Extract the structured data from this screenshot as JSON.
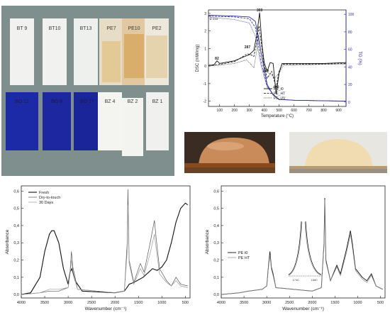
{
  "photo_panel": {
    "labels_top": [
      "BT 9",
      "BT10",
      "BT13",
      "PE7",
      "PE10",
      "PE2"
    ],
    "labels_bottom": [
      "BO 12",
      "BO 8",
      "BO 17",
      "BZ 4",
      "BZ 2",
      "BZ 1"
    ],
    "colors": {
      "background": "#7f8f8e",
      "white_coat": "#f1f2f0",
      "blue_coat": "#1d2aa7",
      "amber": "#d9ad6a"
    }
  },
  "dsc_tg": {
    "chart_data": {
      "type": "line",
      "xlabel": "Temperature (°C)",
      "ylabel_left": "DSC (mW/mg)",
      "ylabel_right": "TG (%)",
      "xlim": [
        25,
        950
      ],
      "xticks": [
        100,
        200,
        300,
        400,
        500,
        600,
        700,
        800,
        900
      ],
      "yticks_left": [
        3,
        2,
        1,
        0,
        -1,
        -2
      ],
      "yticks_right": [
        0,
        20,
        40,
        60,
        80,
        100
      ],
      "ylim_left": [
        -2.3,
        3.2
      ],
      "ylim_right": [
        -5,
        105
      ],
      "legend": [
        "PE_t0",
        "PE_HT",
        "PE_UV"
      ],
      "annotations": [
        "exo",
        "82",
        "287",
        "369",
        "410",
        "480"
      ],
      "annotation_points": [
        {
          "text": "82",
          "x": 82,
          "y": 0.25
        },
        {
          "text": "287",
          "x": 287,
          "y": 0.9
        },
        {
          "text": "369",
          "x": 369,
          "y": 3.0
        },
        {
          "text": "410",
          "x": 410,
          "y": -0.45
        },
        {
          "text": "480",
          "x": 480,
          "y": -1.4
        }
      ],
      "series": [
        {
          "name": "PE_t0",
          "axis": "left",
          "x": [
            25,
            60,
            82,
            100,
            200,
            270,
            300,
            330,
            350,
            369,
            385,
            400,
            420,
            440,
            460,
            480,
            500,
            520,
            600,
            700,
            800,
            950
          ],
          "y": [
            0.05,
            0.05,
            0.3,
            0.15,
            0.3,
            0.55,
            0.65,
            0.9,
            1.8,
            3.05,
            1.2,
            0.2,
            -0.3,
            0.2,
            0.15,
            -1.6,
            -0.4,
            0.15,
            0.15,
            0.15,
            0.15,
            0.2
          ]
        },
        {
          "name": "PE_HT",
          "axis": "left",
          "x": [
            25,
            100,
            200,
            287,
            310,
            330,
            350,
            365,
            385,
            400,
            420,
            450,
            480,
            500,
            520,
            600,
            800,
            950
          ],
          "y": [
            0.05,
            0.1,
            0.25,
            0.7,
            0.65,
            0.55,
            1.4,
            2.3,
            1.0,
            0.0,
            -0.7,
            -0.3,
            -1.2,
            -0.3,
            0.1,
            0.1,
            0.12,
            0.15
          ]
        },
        {
          "name": "PE_UV",
          "axis": "left",
          "x": [
            25,
            100,
            200,
            280,
            300,
            330,
            350,
            362,
            380,
            400,
            420,
            450,
            470,
            500,
            530,
            600,
            800,
            950
          ],
          "y": [
            0.0,
            0.05,
            0.15,
            0.35,
            0.2,
            -0.1,
            0.9,
            1.8,
            0.7,
            0.0,
            -0.35,
            -0.5,
            -0.7,
            -0.4,
            0.05,
            0.05,
            0.1,
            0.1
          ]
        },
        {
          "name": "TG_PE_t0",
          "axis": "right",
          "x": [
            25,
            200,
            300,
            340,
            380,
            420,
            460,
            500,
            600,
            950
          ],
          "y": [
            99,
            98,
            97,
            92,
            55,
            20,
            8,
            3,
            2,
            1
          ]
        },
        {
          "name": "TG_PE_HT",
          "axis": "right",
          "x": [
            25,
            200,
            300,
            340,
            380,
            420,
            460,
            500,
            600,
            950
          ],
          "y": [
            98,
            97,
            95,
            85,
            45,
            18,
            9,
            3,
            2,
            1
          ]
        },
        {
          "name": "TG_PE_UV",
          "axis": "right",
          "x": [
            25,
            200,
            300,
            340,
            380,
            420,
            460,
            500,
            600,
            950
          ],
          "y": [
            97,
            94,
            90,
            75,
            40,
            17,
            9,
            3,
            2,
            1
          ]
        }
      ]
    }
  },
  "droplets": {
    "colors": {
      "dark_bg": "#3a2c22",
      "light_bg": "#e8e6e0",
      "substrate": "#8b4a1c",
      "drop_left": "#c98b5a",
      "drop_right": "#f1dcb2"
    }
  },
  "ir_left": {
    "chart_data": {
      "type": "line",
      "xlabel": "Wavenumber (cm⁻¹)",
      "ylabel": "Absorbance",
      "xlim": [
        4000,
        400
      ],
      "ylim": [
        -0.02,
        0.63
      ],
      "xticks": [
        4000,
        3500,
        3000,
        2500,
        2000,
        1500,
        1000,
        500
      ],
      "yticks": [
        0.0,
        0.1,
        0.2,
        0.3,
        0.4,
        0.5,
        0.6
      ],
      "ytick_labels": [
        "0,0",
        "0,1",
        "0,2",
        "0,3",
        "0,4",
        "0,5",
        "0,6"
      ],
      "legend": [
        "Fresh",
        "Dry-to-touch",
        "30 Days"
      ],
      "series": [
        {
          "name": "Fresh",
          "x": [
            4000,
            3800,
            3600,
            3500,
            3400,
            3350,
            3300,
            3200,
            3100,
            3000,
            2960,
            2920,
            2850,
            2700,
            2000,
            1800,
            1720,
            1700,
            1600,
            1400,
            1200,
            1100,
            1000,
            900,
            800,
            700,
            600,
            500,
            450
          ],
          "y": [
            0.0,
            0.01,
            0.1,
            0.25,
            0.35,
            0.37,
            0.37,
            0.3,
            0.15,
            0.06,
            0.13,
            0.15,
            0.08,
            0.02,
            0.01,
            0.02,
            0.05,
            0.06,
            0.07,
            0.1,
            0.15,
            0.14,
            0.16,
            0.2,
            0.3,
            0.42,
            0.5,
            0.53,
            0.52
          ]
        },
        {
          "name": "Dry-to-touch",
          "x": [
            4000,
            3600,
            3400,
            3200,
            3000,
            2960,
            2930,
            2900,
            2860,
            2800,
            2000,
            1800,
            1740,
            1725,
            1700,
            1600,
            1460,
            1380,
            1250,
            1160,
            1120,
            1050,
            900,
            800,
            700,
            600,
            450
          ],
          "y": [
            0.0,
            0.01,
            0.02,
            0.02,
            0.04,
            0.13,
            0.25,
            0.16,
            0.11,
            0.03,
            0.01,
            0.02,
            0.3,
            0.61,
            0.2,
            0.07,
            0.18,
            0.13,
            0.3,
            0.43,
            0.32,
            0.15,
            0.08,
            0.05,
            0.1,
            0.06,
            0.05
          ]
        },
        {
          "name": "30 Days",
          "x": [
            4000,
            3600,
            3400,
            3200,
            3000,
            2960,
            2930,
            2900,
            2860,
            2800,
            2000,
            1800,
            1740,
            1725,
            1700,
            1600,
            1460,
            1380,
            1250,
            1160,
            1120,
            1050,
            900,
            800,
            700,
            600,
            450
          ],
          "y": [
            0.0,
            0.01,
            0.03,
            0.03,
            0.04,
            0.12,
            0.2,
            0.14,
            0.09,
            0.03,
            0.01,
            0.02,
            0.25,
            0.52,
            0.18,
            0.06,
            0.15,
            0.11,
            0.24,
            0.35,
            0.26,
            0.12,
            0.07,
            0.05,
            0.08,
            0.05,
            0.04
          ]
        }
      ]
    }
  },
  "ir_right": {
    "chart_data": {
      "type": "line",
      "xlabel": "Wavenumber (cm⁻¹)",
      "ylabel": "Absorbance",
      "xlim": [
        4000,
        400
      ],
      "ylim": [
        -0.02,
        0.63
      ],
      "xticks": [
        4000,
        3500,
        3000,
        2500,
        2000,
        1500,
        1000,
        500
      ],
      "yticks": [
        0.0,
        0.1,
        0.2,
        0.3,
        0.4,
        0.5,
        0.6
      ],
      "ytick_labels": [
        "0,0",
        "0,1",
        "0,2",
        "0,3",
        "0,4",
        "0,5",
        "0,6"
      ],
      "legend": [
        "PE t0",
        "PE HT"
      ],
      "inset_ticks": [
        "1740",
        "1680"
      ],
      "series": [
        {
          "name": "PE t0",
          "x": [
            4000,
            3600,
            3400,
            3100,
            3000,
            2960,
            2930,
            2900,
            2860,
            2800,
            2000,
            1800,
            1740,
            1725,
            1700,
            1600,
            1460,
            1380,
            1250,
            1160,
            1120,
            1050,
            900,
            800,
            700,
            600,
            450
          ],
          "y": [
            0.0,
            0.01,
            0.02,
            0.03,
            0.05,
            0.17,
            0.25,
            0.16,
            0.12,
            0.04,
            0.02,
            0.04,
            0.3,
            0.56,
            0.2,
            0.08,
            0.17,
            0.12,
            0.26,
            0.37,
            0.3,
            0.15,
            0.1,
            0.08,
            0.12,
            0.05,
            0.03
          ]
        },
        {
          "name": "PE HT",
          "x": [
            4000,
            3600,
            3400,
            3100,
            3000,
            2960,
            2930,
            2900,
            2860,
            2800,
            2000,
            1800,
            1740,
            1725,
            1700,
            1600,
            1460,
            1380,
            1250,
            1160,
            1120,
            1050,
            900,
            800,
            700,
            600,
            450
          ],
          "y": [
            0.0,
            0.01,
            0.02,
            0.03,
            0.05,
            0.16,
            0.23,
            0.15,
            0.11,
            0.04,
            0.02,
            0.04,
            0.29,
            0.55,
            0.19,
            0.08,
            0.16,
            0.11,
            0.24,
            0.35,
            0.28,
            0.14,
            0.09,
            0.07,
            0.11,
            0.05,
            0.03
          ]
        }
      ]
    }
  }
}
